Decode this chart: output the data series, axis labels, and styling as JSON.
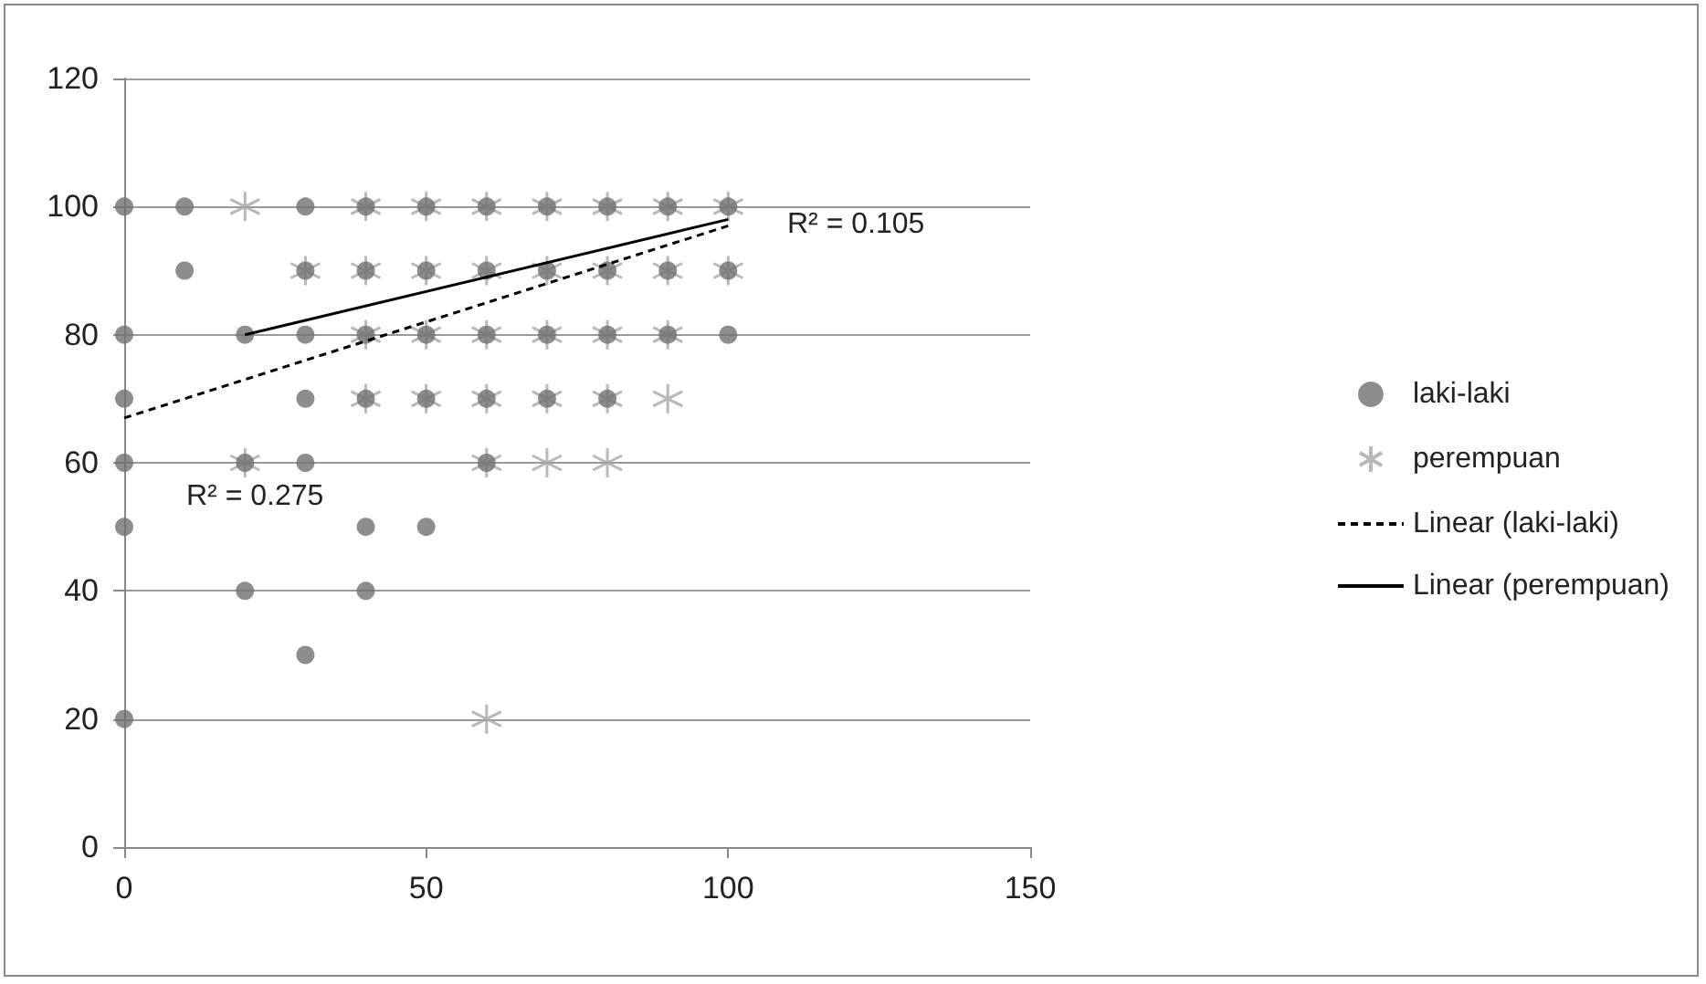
{
  "chart_data": {
    "type": "scatter",
    "xlim": [
      0,
      150
    ],
    "xticks": [
      0,
      50,
      100,
      150
    ],
    "ylim": [
      0,
      120
    ],
    "yticks": [
      0,
      20,
      40,
      60,
      80,
      100,
      120
    ],
    "grid": "y",
    "legend": "right",
    "series": [
      {
        "name": "laki-laki",
        "marker": "circle",
        "color": "#707070",
        "x": [
          0,
          0,
          0,
          0,
          0,
          0,
          10,
          10,
          20,
          20,
          20,
          30,
          30,
          30,
          30,
          30,
          30,
          40,
          40,
          40,
          40,
          40,
          40,
          50,
          50,
          50,
          50,
          50,
          60,
          60,
          60,
          60,
          60,
          70,
          70,
          70,
          70,
          80,
          80,
          80,
          80,
          90,
          90,
          90,
          100,
          100,
          100
        ],
        "values": [
          100,
          80,
          70,
          60,
          50,
          20,
          100,
          90,
          80,
          60,
          40,
          100,
          90,
          80,
          70,
          60,
          30,
          100,
          90,
          80,
          70,
          50,
          40,
          100,
          90,
          80,
          70,
          50,
          100,
          90,
          80,
          70,
          60,
          100,
          90,
          80,
          70,
          100,
          90,
          80,
          70,
          100,
          90,
          80,
          100,
          90,
          80
        ]
      },
      {
        "name": "perempuan",
        "marker": "cross",
        "color": "#a6a6a6",
        "x": [
          20,
          20,
          30,
          40,
          40,
          40,
          40,
          50,
          50,
          50,
          50,
          60,
          60,
          60,
          60,
          60,
          60,
          70,
          70,
          70,
          70,
          70,
          80,
          80,
          80,
          80,
          80,
          90,
          90,
          90,
          90,
          100,
          100
        ],
        "values": [
          100,
          60,
          90,
          100,
          90,
          80,
          70,
          100,
          90,
          80,
          70,
          100,
          90,
          80,
          70,
          60,
          20,
          100,
          90,
          80,
          70,
          60,
          100,
          90,
          80,
          70,
          60,
          100,
          90,
          80,
          70,
          100,
          90
        ]
      },
      {
        "name": "Linear (laki-laki)",
        "type": "line",
        "marker": "none",
        "line_style": "dashed",
        "color": "#000000",
        "x": [
          0,
          100
        ],
        "values": [
          67,
          97
        ]
      },
      {
        "name": "Linear (perempuan)",
        "type": "line",
        "marker": "none",
        "line_style": "solid",
        "color": "#000000",
        "x": [
          20,
          100
        ],
        "values": [
          80,
          98
        ]
      }
    ],
    "annotations": [
      "R² = 0.105",
      "R² = 0.275"
    ]
  }
}
